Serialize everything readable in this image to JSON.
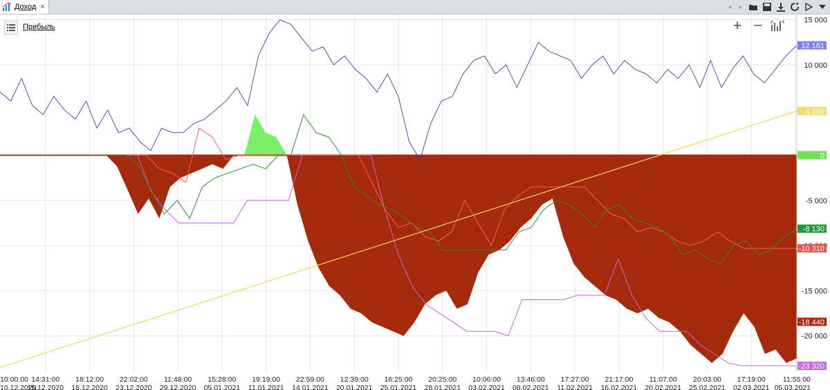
{
  "tab": {
    "label": "Доход",
    "icon": "chart-icon",
    "close": "×"
  },
  "toolbar": {
    "icons": [
      "chevron-left-icon",
      "chevron-right-icon",
      "folder-icon",
      "save-icon",
      "download-icon",
      "refresh-icon",
      "play-icon",
      "dropdown-icon"
    ]
  },
  "legend": {
    "button_icon": "list-icon",
    "label": "Прибыль"
  },
  "zoom": {
    "plus": "+",
    "minus": "−",
    "fit_icon": "fit-icon"
  },
  "colors": {
    "loss_fill": "#a52a0c",
    "profit_fill": "#7df06a",
    "price_line": "#3a3fa8",
    "trend_line": "#f0d75a",
    "green_line": "#2f8f2f",
    "red_line": "#ff5a5a",
    "violet_line": "#c266e0",
    "zero_line": "#a52a0c"
  },
  "chart_data": {
    "type": "area",
    "ylim": [
      -24000,
      15500
    ],
    "y_ticks": [
      "15 000",
      "10 000",
      "-5 000",
      "-10 000",
      "-15 000",
      "-20 000"
    ],
    "y_tick_values": [
      15000,
      10000,
      -5000,
      -10000,
      -15000,
      -20000
    ],
    "x_labels": [
      {
        "time": "10:00:00",
        "date": "10.12.2020"
      },
      {
        "time": "14:31:00",
        "date": "15.12.2020"
      },
      {
        "time": "18:12:00",
        "date": "18.12.2020"
      },
      {
        "time": "22:02:00",
        "date": "23.12.2020"
      },
      {
        "time": "11:48:00",
        "date": "29.12.2020"
      },
      {
        "time": "15:28:00",
        "date": "05.01.2021"
      },
      {
        "time": "19:19:00",
        "date": "11.01.2021"
      },
      {
        "time": "22:59:00",
        "date": "14.01.2021"
      },
      {
        "time": "12:39:00",
        "date": "20.01.2021"
      },
      {
        "time": "16:25:00",
        "date": "25.01.2021"
      },
      {
        "time": "20:25:00",
        "date": "28.01.2021"
      },
      {
        "time": "10:06:00",
        "date": "03.02.2021"
      },
      {
        "time": "13:46:00",
        "date": "08.02.2021"
      },
      {
        "time": "17:27:00",
        "date": "11.02.2021"
      },
      {
        "time": "21:17:00",
        "date": "16.02.2021"
      },
      {
        "time": "11:07:00",
        "date": "20.02.2021"
      },
      {
        "time": "20:03:00",
        "date": "25.02.2021"
      },
      {
        "time": "17:19:00",
        "date": "02.03.2021"
      },
      {
        "time": "11:55:00",
        "date": "05.03.2021"
      }
    ],
    "tags": [
      {
        "text": "12 161",
        "value": 12161,
        "bg": "#7b7ff0",
        "fg": "#ffffff"
      },
      {
        "text": "4 890",
        "value": 4890,
        "bg": "#f2dc6a",
        "fg": "#ffffff"
      },
      {
        "text": "0",
        "value": 0,
        "bg": "#6ee35a",
        "fg": "#ffffff"
      },
      {
        "text": "-8 130",
        "value": -8130,
        "bg": "#1f9a3b",
        "fg": "#ffffff"
      },
      {
        "text": "-10 310",
        "value": -10310,
        "bg": "#f25050",
        "fg": "#ffffff"
      },
      {
        "text": "-18 440",
        "value": -18440,
        "bg": "#b1240a",
        "fg": "#ffffff"
      },
      {
        "text": "-23 320",
        "value": -23320,
        "bg": "#c46ae3",
        "fg": "#ffffff"
      }
    ],
    "series": [
      {
        "key": "profit",
        "values": [
          0,
          0,
          0,
          0,
          0,
          0,
          0,
          0,
          0,
          0,
          0,
          -1200,
          -3800,
          -6500,
          -4800,
          -7000,
          -3500,
          -2500,
          -2000,
          -1500,
          -1000,
          -1500,
          0,
          0,
          4500,
          2500,
          2000,
          0,
          -5500,
          -9500,
          -12500,
          -14500,
          -15500,
          -17000,
          -17500,
          -18500,
          -19000,
          -19500,
          -20000,
          -18500,
          -16500,
          -15500,
          -15000,
          -17000,
          -16500,
          -13000,
          -11000,
          -10500,
          -9500,
          -8000,
          -7000,
          -5500,
          -4800,
          -9000,
          -12000,
          -13500,
          -14500,
          -15500,
          -16000,
          -17000,
          -17500,
          -17000,
          -18000,
          -18500,
          -19500,
          -21000,
          -22000,
          -23000,
          -22000,
          -19500,
          -17500,
          -19000,
          -22000,
          -21500,
          -23000,
          -22500
        ]
      },
      {
        "key": "price",
        "values": [
          7000,
          6000,
          8500,
          5500,
          4500,
          6500,
          5000,
          4000,
          6000,
          3000,
          5000,
          2500,
          3000,
          1500,
          500,
          3000,
          2500,
          2500,
          3500,
          4000,
          5000,
          6000,
          7500,
          5500,
          11000,
          13500,
          15000,
          14500,
          13000,
          11500,
          12000,
          10000,
          11000,
          9500,
          8500,
          7000,
          9000,
          6500,
          1500,
          -500,
          3500,
          6000,
          6500,
          9000,
          10500,
          11000,
          9000,
          10000,
          7500,
          10000,
          12500,
          11500,
          11000,
          10500,
          8500,
          10000,
          11000,
          9000,
          10500,
          9500,
          9000,
          8000,
          9500,
          8500,
          10000,
          7500,
          10500,
          7500,
          9500,
          11000,
          9000,
          8000,
          9500,
          11000,
          12161
        ]
      },
      {
        "key": "green",
        "values": [
          0,
          0,
          0,
          0,
          0,
          0,
          0,
          0,
          0,
          0,
          0,
          -1200,
          -4000,
          -6500,
          -5000,
          -7000,
          -3500,
          -2500,
          -2000,
          -1500,
          -1000,
          -1500,
          0,
          0,
          4500,
          2500,
          2000,
          0,
          -3500,
          -4500,
          -5500,
          -6000,
          -7000,
          -8000,
          -8500,
          -10500,
          -10500,
          -10500,
          -10500,
          -10500,
          -10500,
          -8500,
          -8000,
          -6000,
          -5000,
          -5500,
          -6500,
          -8000,
          -6000,
          -5500,
          -7000,
          -7500,
          -8000,
          -9000,
          -11000,
          -10500,
          -11500,
          -12000,
          -10000,
          -9500,
          -11000,
          -10500,
          -9000,
          -8130
        ]
      },
      {
        "key": "red",
        "values": [
          0,
          0,
          0,
          0,
          0,
          0,
          0,
          0,
          0,
          0,
          0,
          0,
          -1500,
          -2000,
          -3000,
          3000,
          2000,
          -500,
          0,
          0,
          0,
          0,
          0,
          0,
          0,
          0,
          0,
          0,
          -3000,
          -6000,
          -8000,
          -7500,
          -9000,
          -9500,
          -8500,
          -5000,
          -7500,
          -10000,
          -6000,
          -4500,
          -3500,
          -3500,
          -3500,
          -3500,
          -3500,
          -5000,
          -6500,
          -7000,
          -8500,
          -8000,
          -8500,
          -9500,
          -10000,
          -9500,
          -8500,
          -9500,
          -10310,
          -10310,
          -10310,
          -10310,
          -10310
        ]
      },
      {
        "key": "violet",
        "values": [
          0,
          0,
          0,
          0,
          0,
          0,
          0,
          0,
          0,
          0,
          0,
          -4000,
          -6000,
          -7500,
          -7500,
          -7500,
          -7500,
          -7500,
          -5000,
          -5000,
          -5000,
          -5000,
          0,
          0,
          0,
          0,
          0,
          0,
          -6000,
          -11000,
          -14500,
          -16500,
          -17500,
          -18500,
          -19500,
          -19500,
          -19500,
          -20000,
          -16000,
          -16000,
          -16000,
          -16000,
          -15500,
          -15500,
          -15500,
          -11500,
          -15500,
          -18000,
          -19500,
          -19500,
          -19500,
          -21000,
          -22000,
          -23000,
          -23300,
          -23300,
          -23300,
          -23300,
          -23320
        ]
      },
      {
        "key": "trend",
        "values": [
          -23500,
          4890
        ]
      }
    ]
  }
}
